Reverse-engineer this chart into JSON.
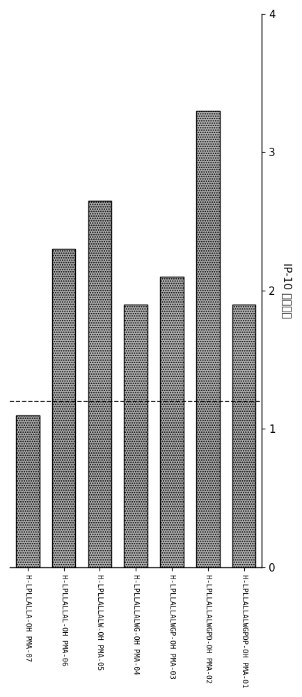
{
  "categories": [
    "H-LPLLALLA-OH PMA-07",
    "H-LPLLALLAL-OH PMA-06",
    "H-LPLLALLALW-OH PMA-05",
    "H-LPLLALLALWG-OH PMA-04",
    "H-LPLLALLALWGP-OH PMA-03",
    "H-LPLLALLALWGPD-OH PMA-02",
    "H-LPLLALLALWGPDP-OH PMA-01"
  ],
  "values": [
    1.1,
    2.3,
    2.65,
    1.9,
    2.1,
    3.3,
    1.9
  ],
  "bar_color": "#b0b0b0",
  "bar_hatch": ".....",
  "ylim": [
    0,
    4
  ],
  "yticks": [
    0,
    1,
    2,
    3,
    4
  ],
  "dashed_line_y": 1.2,
  "ylabel": "IP-10 倍数变化",
  "background_color": "#ffffff",
  "bar_edgecolor": "#000000"
}
